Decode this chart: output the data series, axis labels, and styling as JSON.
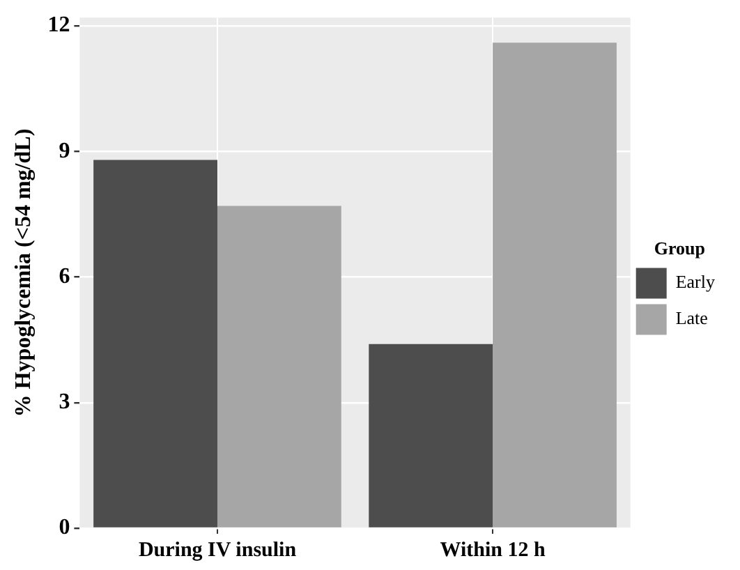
{
  "chart_data": {
    "type": "bar",
    "ylabel": "% Hypoglycemia (<54 mg/dL)",
    "legend_title": "Group",
    "categories": [
      "During IV insulin",
      "Within 12 h"
    ],
    "series": [
      {
        "name": "Early",
        "color": "#4d4d4d",
        "values": [
          8.8,
          4.4
        ]
      },
      {
        "name": "Late",
        "color": "#a6a6a6",
        "values": [
          7.7,
          11.6
        ]
      }
    ],
    "ylim": [
      0,
      12.2
    ],
    "yticks": [
      0,
      3,
      6,
      9,
      12
    ],
    "grid": true,
    "legend": "right"
  }
}
